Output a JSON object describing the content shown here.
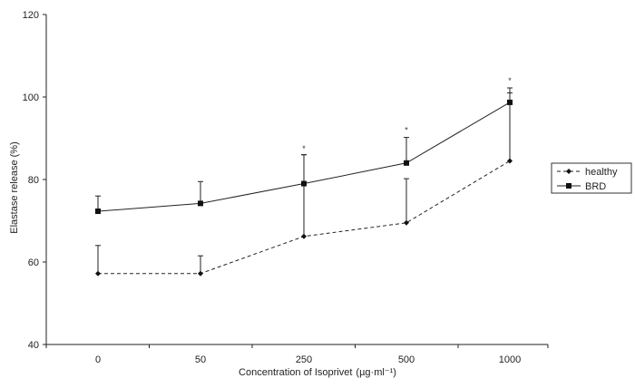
{
  "chart_data": {
    "type": "line",
    "categories": [
      "0",
      "50",
      "250",
      "500",
      "1000"
    ],
    "xlabel": "Concentration of Isoprivet",
    "xlabel_unit": "(µg·ml⁻¹)",
    "ylabel": "Elastase release (%)",
    "ylim": [
      40,
      120
    ],
    "yticks": [
      40,
      60,
      80,
      100,
      120
    ],
    "grid": false,
    "legend_position": "right",
    "series": [
      {
        "name": "healthy",
        "marker": "diamond",
        "line_style": "dashed",
        "values": [
          57.2,
          57.2,
          66.2,
          69.5,
          84.5
        ],
        "error_upper": [
          64,
          61.5,
          86,
          80.2,
          101
        ]
      },
      {
        "name": "BRD",
        "marker": "square",
        "line_style": "solid",
        "values": [
          72.3,
          74.2,
          79,
          84,
          98.7
        ],
        "error_upper": [
          76,
          79.5,
          86,
          90.2,
          102.2
        ]
      }
    ],
    "annotations": [
      {
        "category": "250",
        "text": "*",
        "y": 87.5
      },
      {
        "category": "500",
        "text": "*",
        "y": 92
      },
      {
        "category": "1000",
        "text": "*",
        "y": 104
      }
    ]
  }
}
